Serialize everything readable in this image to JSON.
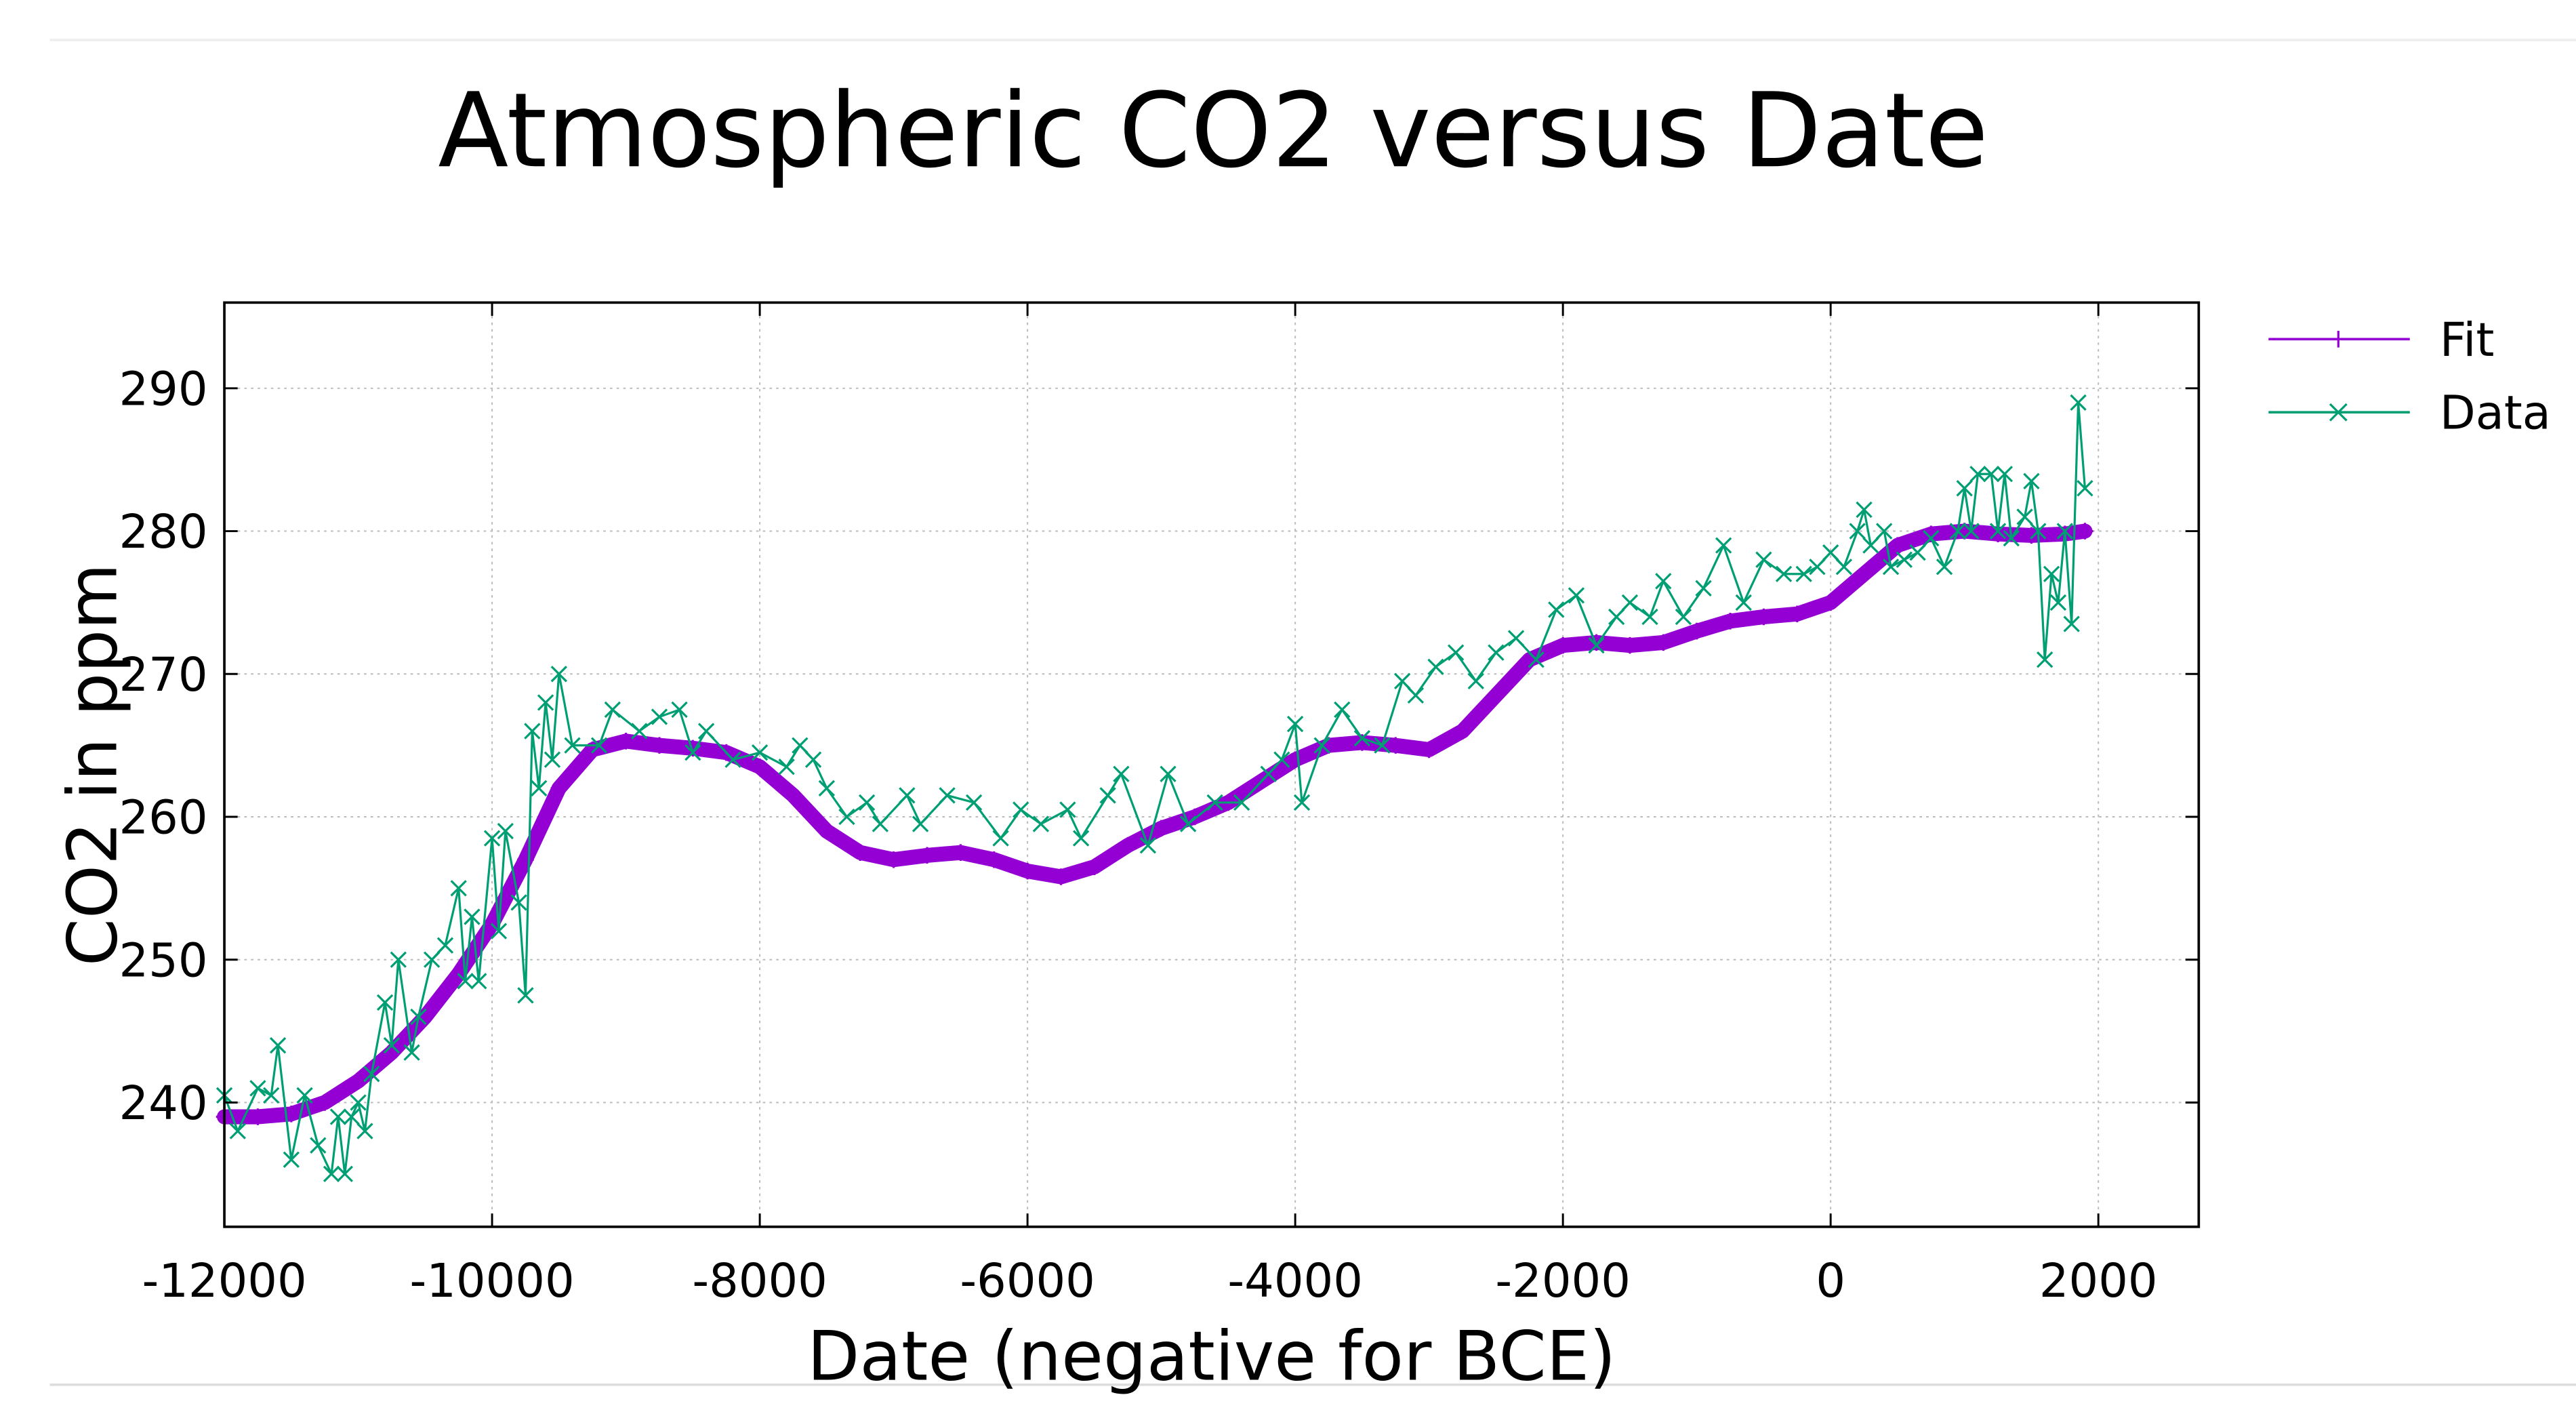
{
  "chart_data": {
    "type": "line",
    "title": "Atmospheric CO2 versus Date",
    "x_label": "Date (negative for BCE)",
    "y_label": "CO2 in ppm",
    "xlim": [
      -12000,
      2750
    ],
    "ylim": [
      231.3,
      296
    ],
    "xticks": [
      -12000,
      -10000,
      -8000,
      -6000,
      -4000,
      -2000,
      0,
      2000
    ],
    "yticks": [
      240,
      250,
      260,
      270,
      280,
      290
    ],
    "grid": true,
    "legend": "outside-top-right",
    "series": [
      {
        "name": "Fit",
        "color": "#9400d3",
        "marker": "+",
        "x": [
          -12000,
          -11750,
          -11500,
          -11250,
          -11000,
          -10750,
          -10500,
          -10250,
          -10000,
          -9750,
          -9500,
          -9250,
          -9000,
          -8750,
          -8500,
          -8250,
          -8000,
          -7750,
          -7500,
          -7250,
          -7000,
          -6750,
          -6500,
          -6250,
          -6000,
          -5750,
          -5500,
          -5250,
          -5000,
          -4750,
          -4500,
          -4250,
          -4000,
          -3750,
          -3500,
          -3250,
          -3000,
          -2750,
          -2500,
          -2250,
          -2000,
          -1750,
          -1500,
          -1250,
          -1000,
          -750,
          -500,
          -250,
          0,
          250,
          500,
          750,
          1000,
          1250,
          1500,
          1750,
          1900
        ],
        "values": [
          239,
          239,
          239.2,
          240,
          241.5,
          243.5,
          246,
          249,
          252.5,
          257,
          262,
          264.7,
          265.3,
          265,
          264.8,
          264.5,
          263.5,
          261.5,
          259,
          257.5,
          257,
          257.3,
          257.5,
          257,
          256.2,
          255.8,
          256.5,
          258,
          259.2,
          260,
          261,
          262.5,
          264,
          265,
          265.2,
          265,
          264.7,
          266,
          268.5,
          271,
          272,
          272.2,
          272,
          272.2,
          273,
          273.7,
          274,
          274.2,
          275,
          277,
          279,
          279.8,
          280,
          279.8,
          279.7,
          279.8,
          280
        ]
      },
      {
        "name": "Data",
        "color": "#009e73",
        "marker": "x",
        "x": [
          -12000,
          -11900,
          -11750,
          -11650,
          -11600,
          -11500,
          -11400,
          -11300,
          -11200,
          -11150,
          -11100,
          -11050,
          -11000,
          -10950,
          -10900,
          -10800,
          -10750,
          -10700,
          -10600,
          -10550,
          -10450,
          -10350,
          -10250,
          -10200,
          -10150,
          -10100,
          -10000,
          -9950,
          -9900,
          -9800,
          -9750,
          -9700,
          -9650,
          -9600,
          -9550,
          -9500,
          -9400,
          -9200,
          -9100,
          -8900,
          -8750,
          -8600,
          -8500,
          -8400,
          -8200,
          -8000,
          -7800,
          -7700,
          -7600,
          -7500,
          -7350,
          -7200,
          -7100,
          -6900,
          -6800,
          -6600,
          -6400,
          -6200,
          -6050,
          -5900,
          -5700,
          -5600,
          -5400,
          -5300,
          -5100,
          -4950,
          -4800,
          -4600,
          -4400,
          -4200,
          -4100,
          -4000,
          -3950,
          -3800,
          -3650,
          -3500,
          -3350,
          -3200,
          -3100,
          -2950,
          -2800,
          -2650,
          -2500,
          -2350,
          -2200,
          -2050,
          -1900,
          -1750,
          -1600,
          -1500,
          -1350,
          -1250,
          -1100,
          -950,
          -800,
          -650,
          -500,
          -350,
          -200,
          -100,
          0,
          100,
          200,
          250,
          300,
          400,
          450,
          550,
          650,
          750,
          850,
          950,
          1000,
          1050,
          1100,
          1200,
          1250,
          1300,
          1350,
          1450,
          1500,
          1550,
          1600,
          1650,
          1700,
          1750,
          1800,
          1850,
          1900
        ],
        "values": [
          240.5,
          238,
          241,
          240.5,
          244,
          236,
          240.5,
          237,
          235,
          239,
          235,
          239,
          240,
          238,
          242,
          247,
          244,
          250,
          243.5,
          246,
          250,
          251,
          255,
          248.5,
          253,
          248.5,
          258.5,
          252,
          259,
          254,
          247.5,
          266,
          262,
          268,
          264,
          270,
          265,
          265,
          267.5,
          266,
          267,
          267.5,
          264.5,
          266,
          264,
          264.5,
          263.5,
          265,
          264,
          262,
          260,
          261,
          259.5,
          261.5,
          259.5,
          261.5,
          261,
          258.5,
          260.5,
          259.5,
          260.5,
          258.5,
          261.5,
          263,
          258,
          263,
          259.5,
          261,
          261,
          263,
          264,
          266.5,
          261,
          265,
          267.5,
          265.5,
          265,
          269.5,
          268.5,
          270.5,
          271.5,
          269.5,
          271.5,
          272.5,
          271,
          274.5,
          275.5,
          272,
          274,
          275,
          274,
          276.5,
          274,
          276,
          279,
          275,
          278,
          277,
          277,
          277.5,
          278.5,
          277.5,
          280,
          281.5,
          279,
          280,
          277.5,
          278,
          278.5,
          279.5,
          277.5,
          280,
          283,
          280,
          284,
          284,
          280,
          284,
          279.5,
          281,
          283.5,
          280,
          271,
          277,
          275,
          280,
          273.5,
          289,
          283
        ]
      }
    ]
  }
}
